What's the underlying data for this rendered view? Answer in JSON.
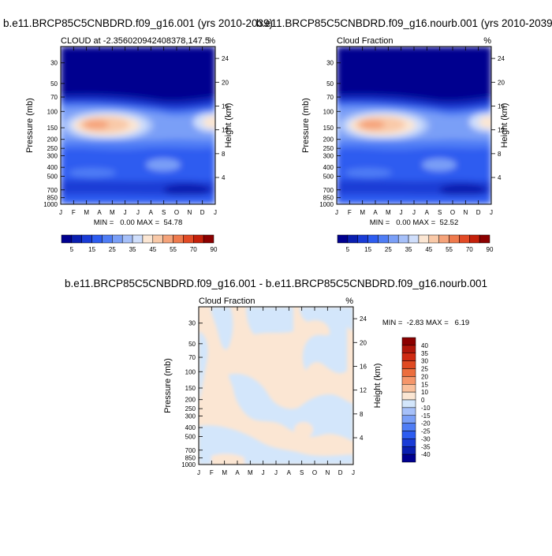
{
  "chart_data": [
    {
      "type": "heatmap",
      "title": "b.e11.BRCP85C5CNBDRD.f09_g16.001 (yrs 2010-2039)",
      "subtitle_left": "CLOUD at -2.356020942408378,147.5",
      "subtitle_right": "%",
      "xlabel": "",
      "ylabel": "Pressure (mb)",
      "ylabel_right": "Height (km)",
      "x_ticks": [
        "J",
        "F",
        "M",
        "A",
        "M",
        "J",
        "J",
        "A",
        "S",
        "O",
        "N",
        "D",
        "J"
      ],
      "y_ticks": [
        "30",
        "50",
        "70",
        "100",
        "150",
        "200",
        "250",
        "300",
        "400",
        "500",
        "700",
        "850",
        "1000"
      ],
      "y_ticks_right": [
        "24",
        "20",
        "16",
        "12",
        "8",
        "4"
      ],
      "stats": "MIN =   0.00 MAX =  54.78",
      "legend_ticks": [
        "5",
        "15",
        "25",
        "35",
        "45",
        "55",
        "70",
        "90"
      ]
    },
    {
      "type": "heatmap",
      "title": "b.e11.BRCP85C5CNBDRD.f09_g16.nourb.001 (yrs 2010-2039)",
      "subtitle_left": "Cloud Fraction",
      "subtitle_right": "%",
      "xlabel": "",
      "ylabel": "Pressure (mb)",
      "ylabel_right": "Height (km)",
      "x_ticks": [
        "J",
        "F",
        "M",
        "A",
        "M",
        "J",
        "J",
        "A",
        "S",
        "O",
        "N",
        "D",
        "J"
      ],
      "y_ticks": [
        "30",
        "50",
        "70",
        "100",
        "150",
        "200",
        "250",
        "300",
        "400",
        "500",
        "700",
        "850",
        "1000"
      ],
      "y_ticks_right": [
        "24",
        "20",
        "16",
        "12",
        "8",
        "4"
      ],
      "stats": "MIN =   0.00 MAX =  52.52",
      "legend_ticks": [
        "5",
        "15",
        "25",
        "35",
        "45",
        "55",
        "70",
        "90"
      ]
    },
    {
      "type": "heatmap",
      "title": "b.e11.BRCP85C5CNBDRD.f09_g16.001 - b.e11.BRCP85C5CNBDRD.f09_g16.nourb.001",
      "subtitle_left": "Cloud Fraction",
      "subtitle_right": "%",
      "xlabel": "",
      "ylabel": "Pressure (mb)",
      "ylabel_right": "Height (km)",
      "x_ticks": [
        "J",
        "F",
        "M",
        "A",
        "M",
        "J",
        "J",
        "A",
        "S",
        "O",
        "N",
        "D",
        "J"
      ],
      "y_ticks": [
        "30",
        "50",
        "70",
        "100",
        "150",
        "200",
        "250",
        "300",
        "400",
        "500",
        "700",
        "850",
        "1000"
      ],
      "y_ticks_right": [
        "24",
        "20",
        "16",
        "12",
        "8",
        "4"
      ],
      "stats": "MIN =  -2.83 MAX =   6.19",
      "legend_ticks": [
        "40",
        "35",
        "30",
        "25",
        "20",
        "15",
        "10",
        "0",
        "-10",
        "-15",
        "-20",
        "-25",
        "-30",
        "-35",
        "-40"
      ]
    }
  ],
  "colors": {
    "abs_scale": [
      "#00008f",
      "#0a1fb0",
      "#1a3cd6",
      "#2d5cf0",
      "#4f7df5",
      "#7a9ff7",
      "#a6c0f9",
      "#cfdefb",
      "#fbe6d3",
      "#f9c9a8",
      "#f5a37a",
      "#ef7a4d",
      "#e24a25",
      "#c4200a",
      "#8b0000"
    ],
    "diff_scale": [
      "#8b0000",
      "#b0160a",
      "#cf2a12",
      "#e04a22",
      "#ec6e3e",
      "#f5966a",
      "#f9c09c",
      "#fbe6d3",
      "#d3e6fb",
      "#a6c0f9",
      "#7a9ff7",
      "#4f7df5",
      "#2d5cf0",
      "#1a3cd6",
      "#0a1fb0",
      "#00008f"
    ]
  }
}
